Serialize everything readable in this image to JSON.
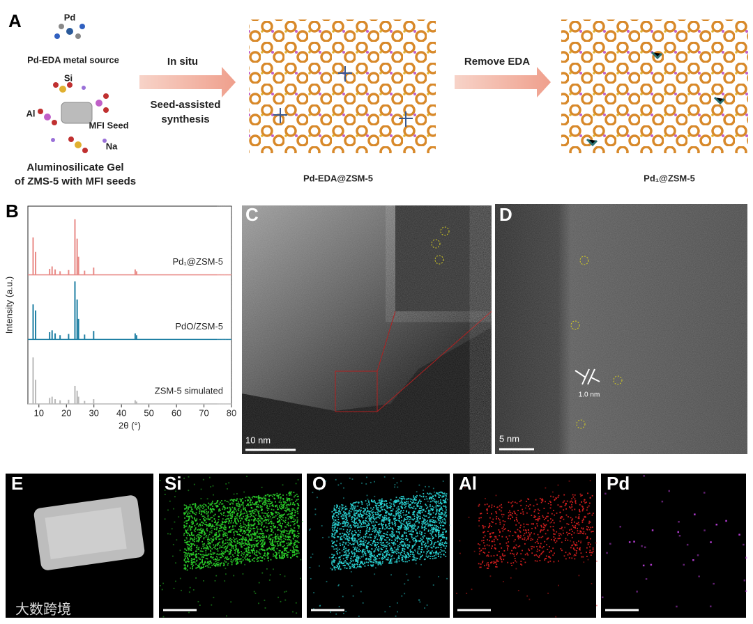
{
  "panels": {
    "A": {
      "label": "A",
      "metal_source": {
        "atom": "Pd",
        "caption": "Pd-EDA metal source"
      },
      "gel": {
        "atoms": [
          "Si",
          "Al",
          "Na"
        ],
        "seed": "MFI Seed",
        "caption": [
          "Aluminosilicate Gel",
          "of ZMS-5 with MFI seeds"
        ]
      },
      "step1": {
        "above": "In situ",
        "below": [
          "Seed-assisted",
          "synthesis"
        ]
      },
      "step2": {
        "above": "Remove EDA"
      },
      "products": [
        "Pd-EDA@ZSM-5",
        "Pd₁@ZSM-5"
      ]
    },
    "C": {
      "label": "C",
      "scale_bar": "10 nm"
    },
    "D": {
      "label": "D",
      "scale_bar": "5 nm",
      "spacing": "1.0 nm"
    },
    "E": {
      "labels": [
        "E",
        "Si",
        "O",
        "Al",
        "Pd"
      ]
    }
  },
  "chart_data": {
    "type": "stick",
    "panel_label": "B",
    "x_label": "2θ (°)",
    "y_label": "Intensity (a.u.)",
    "x": [
      7.9,
      8.8,
      13.9,
      14.8,
      15.9,
      17.7,
      20.8,
      23.1,
      23.9,
      24.4,
      26.6,
      29.9,
      45.0,
      45.5
    ],
    "series": [
      {
        "name": "Pd₁@ZSM-5",
        "color": "#e88a86",
        "values": [
          62,
          38,
          10,
          14,
          9,
          6,
          8,
          92,
          60,
          30,
          7,
          12,
          9,
          6
        ]
      },
      {
        "name": "PdO/ZSM-5",
        "color": "#1f7fa3",
        "values": [
          58,
          48,
          12,
          15,
          10,
          7,
          9,
          96,
          66,
          34,
          8,
          14,
          10,
          7
        ]
      },
      {
        "name": "ZSM-5 simulated",
        "color": "#b8b8b8",
        "values": [
          77,
          40,
          10,
          12,
          8,
          6,
          7,
          30,
          22,
          12,
          5,
          8,
          6,
          4
        ]
      }
    ],
    "xlim": [
      6,
      80
    ],
    "xticks": [
      10,
      20,
      30,
      40,
      50,
      60,
      70,
      80
    ],
    "ylim": [
      0,
      100
    ]
  },
  "watermark": "大数跨境"
}
